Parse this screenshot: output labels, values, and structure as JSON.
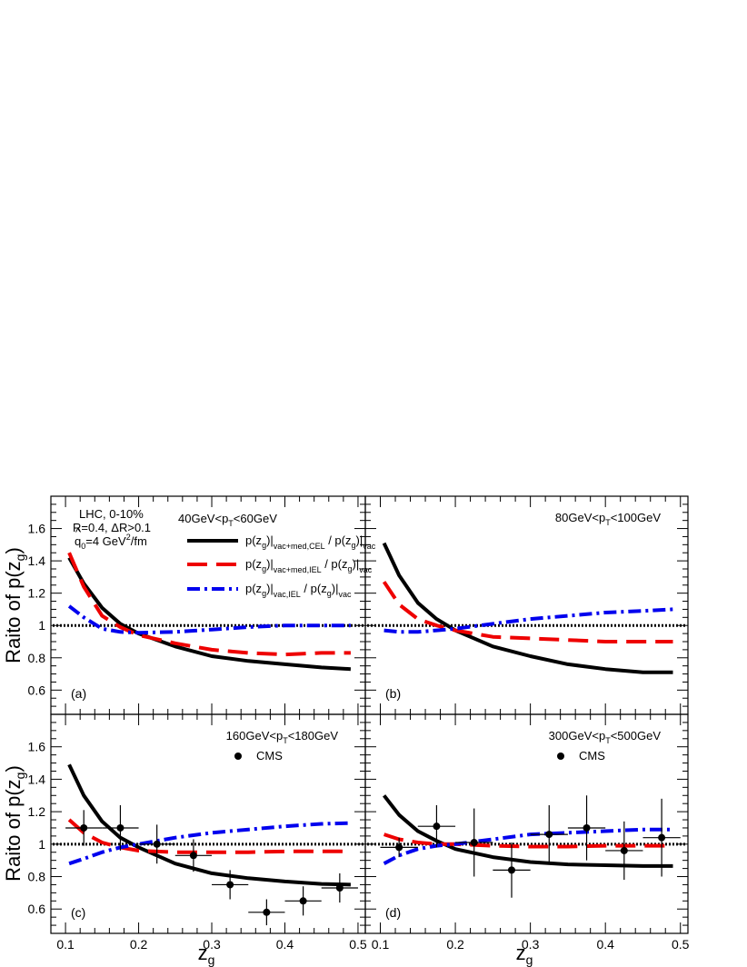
{
  "chart_data": {
    "type": "line",
    "ylabel": "Raito of p(z",
    "ylabel_sub": "g",
    "ylabel_close": ")",
    "xlabel": "z",
    "xlabel_sub": "g",
    "xlim": [
      0.08,
      0.51
    ],
    "ylim": [
      0.45,
      1.8
    ],
    "x_ticks": [
      "0.1",
      "0.2",
      "0.3",
      "0.4",
      "0.5"
    ],
    "y_ticks": [
      "0.6",
      "0.8",
      "1",
      "1.2",
      "1.4",
      "1.6"
    ],
    "reference_line": 1.0,
    "series_styles": [
      {
        "name": "p(zg)|vac+med,CEL / p(zg)|vac",
        "color": "#000000",
        "dash": "solid"
      },
      {
        "name": "p(zg)|vac+med,IEL / p(zg)|vac",
        "color": "#ee0000",
        "dash": "dashed"
      },
      {
        "name": "p(zg)|vac,IEL / p(zg)|vac",
        "color": "#0000ee",
        "dash": "dashdot"
      }
    ],
    "legend": [
      {
        "pre": "p(z",
        "s1": "g",
        "mid": ")|",
        "s2": "vac+med,CEL",
        "post": " / p(z",
        "s3": "g",
        "mid2": ")|",
        "s4": "vac"
      },
      {
        "pre": "p(z",
        "s1": "g",
        "mid": ")|",
        "s2": "vac+med,IEL",
        "post": " / p(z",
        "s3": "g",
        "mid2": ")|",
        "s4": "vac"
      },
      {
        "pre": "p(z",
        "s1": "g",
        "mid": ")|",
        "s2": "vac,IEL",
        "post": " / p(z",
        "s3": "g",
        "mid2": ")|",
        "s4": "vac"
      }
    ],
    "info_text": {
      "line1": "LHC, 0-10%",
      "line2": "R=0.4, ΔR>0.1",
      "line3_pre": "q",
      "line3_hat": "^",
      "line3_sub": "0",
      "line3_mid": "=4 GeV",
      "line3_sup": "2",
      "line3_post": "/fm"
    },
    "cms_label": "CMS",
    "panels": [
      {
        "id": "a",
        "label": "(a)",
        "pt_pre": "40GeV<p",
        "pt_sub": "T",
        "pt_post": "<60GeV",
        "x": [
          0.105,
          0.125,
          0.15,
          0.175,
          0.2,
          0.25,
          0.3,
          0.35,
          0.4,
          0.45,
          0.49
        ],
        "series": [
          {
            "name": "CEL",
            "values": [
              1.42,
              1.26,
              1.11,
              1.01,
              0.95,
              0.87,
              0.81,
              0.78,
              0.76,
              0.74,
              0.73
            ]
          },
          {
            "name": "IEL",
            "values": [
              1.45,
              1.24,
              1.06,
              0.99,
              0.94,
              0.89,
              0.85,
              0.83,
              0.82,
              0.83,
              0.83
            ]
          },
          {
            "name": "vac",
            "values": [
              1.12,
              1.05,
              0.98,
              0.96,
              0.955,
              0.96,
              0.975,
              0.99,
              1.0,
              1.0,
              1.0
            ]
          }
        ],
        "data_points": []
      },
      {
        "id": "b",
        "label": "(b)",
        "pt_pre": "80GeV<p",
        "pt_sub": "T",
        "pt_post": "<100GeV",
        "x": [
          0.105,
          0.125,
          0.15,
          0.175,
          0.2,
          0.25,
          0.3,
          0.35,
          0.4,
          0.45,
          0.49
        ],
        "series": [
          {
            "name": "CEL",
            "values": [
              1.51,
              1.31,
              1.14,
              1.04,
              0.97,
              0.87,
              0.81,
              0.76,
              0.73,
              0.71,
              0.71
            ]
          },
          {
            "name": "IEL",
            "values": [
              1.27,
              1.13,
              1.04,
              1.0,
              0.97,
              0.93,
              0.92,
              0.91,
              0.9,
              0.9,
              0.9
            ]
          },
          {
            "name": "vac",
            "values": [
              0.97,
              0.96,
              0.96,
              0.97,
              0.98,
              1.01,
              1.04,
              1.06,
              1.08,
              1.09,
              1.1
            ]
          }
        ],
        "data_points": []
      },
      {
        "id": "c",
        "label": "(c)",
        "pt_pre": "160GeV<p",
        "pt_sub": "T",
        "pt_post": "<180GeV",
        "x": [
          0.105,
          0.125,
          0.15,
          0.175,
          0.2,
          0.25,
          0.3,
          0.35,
          0.4,
          0.45,
          0.49
        ],
        "series": [
          {
            "name": "CEL",
            "values": [
              1.49,
              1.3,
              1.14,
              1.04,
              0.98,
              0.88,
              0.82,
              0.79,
              0.77,
              0.755,
              0.75
            ]
          },
          {
            "name": "IEL",
            "values": [
              1.15,
              1.07,
              1.01,
              0.98,
              0.96,
              0.95,
              0.95,
              0.95,
              0.955,
              0.955,
              0.955
            ]
          },
          {
            "name": "vac",
            "values": [
              0.88,
              0.91,
              0.95,
              0.98,
              1.0,
              1.04,
              1.07,
              1.09,
              1.11,
              1.125,
              1.13
            ]
          }
        ],
        "data_points": [
          {
            "x": 0.125,
            "y": 1.1,
            "xerr": 0.025,
            "yerr": 0.11
          },
          {
            "x": 0.175,
            "y": 1.1,
            "xerr": 0.025,
            "yerr": 0.14
          },
          {
            "x": 0.225,
            "y": 1.0,
            "xerr": 0.025,
            "yerr": 0.12
          },
          {
            "x": 0.275,
            "y": 0.93,
            "xerr": 0.025,
            "yerr": 0.1
          },
          {
            "x": 0.325,
            "y": 0.75,
            "xerr": 0.025,
            "yerr": 0.09
          },
          {
            "x": 0.375,
            "y": 0.58,
            "xerr": 0.025,
            "yerr": 0.08
          },
          {
            "x": 0.425,
            "y": 0.65,
            "xerr": 0.025,
            "yerr": 0.09
          },
          {
            "x": 0.475,
            "y": 0.73,
            "xerr": 0.025,
            "yerr": 0.09
          }
        ]
      },
      {
        "id": "d",
        "label": "(d)",
        "pt_pre": "300GeV<p",
        "pt_sub": "T",
        "pt_post": "<500GeV",
        "x": [
          0.105,
          0.125,
          0.15,
          0.175,
          0.2,
          0.25,
          0.3,
          0.35,
          0.4,
          0.45,
          0.49
        ],
        "series": [
          {
            "name": "CEL",
            "values": [
              1.3,
              1.18,
              1.08,
              1.02,
              0.97,
              0.92,
              0.89,
              0.875,
              0.87,
              0.865,
              0.865
            ]
          },
          {
            "name": "IEL",
            "values": [
              1.06,
              1.03,
              1.01,
              1.0,
              1.0,
              0.99,
              0.985,
              0.985,
              0.99,
              0.99,
              0.99
            ]
          },
          {
            "name": "vac",
            "values": [
              0.88,
              0.93,
              0.97,
              0.99,
              1.0,
              1.03,
              1.06,
              1.07,
              1.08,
              1.09,
              1.09
            ]
          }
        ],
        "data_points": [
          {
            "x": 0.125,
            "y": 0.98,
            "xerr": 0.025,
            "yerr": 0.06
          },
          {
            "x": 0.175,
            "y": 1.11,
            "xerr": 0.025,
            "yerr": 0.13
          },
          {
            "x": 0.225,
            "y": 1.01,
            "xerr": 0.025,
            "yerr": 0.21
          },
          {
            "x": 0.275,
            "y": 0.84,
            "xerr": 0.025,
            "yerr": 0.17
          },
          {
            "x": 0.325,
            "y": 1.06,
            "xerr": 0.025,
            "yerr": 0.18
          },
          {
            "x": 0.375,
            "y": 1.1,
            "xerr": 0.025,
            "yerr": 0.2
          },
          {
            "x": 0.425,
            "y": 0.96,
            "xerr": 0.025,
            "yerr": 0.18
          },
          {
            "x": 0.475,
            "y": 1.04,
            "xerr": 0.025,
            "yerr": 0.24
          }
        ]
      }
    ]
  }
}
